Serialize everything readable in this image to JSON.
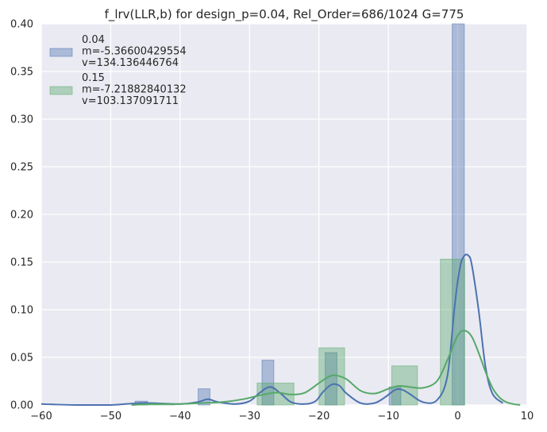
{
  "chart_data": {
    "type": "bar",
    "title": "f_lrv(LLR,b) for design_p=0.04, Rel_Order=686/1024 G=775",
    "xlabel": "",
    "ylabel": "",
    "xlim": [
      -60,
      10
    ],
    "ylim": [
      0,
      0.4
    ],
    "x_ticks": [
      -60,
      -50,
      -40,
      -30,
      -20,
      -10,
      0,
      10
    ],
    "x_tick_labels": [
      "−60",
      "−50",
      "−40",
      "−30",
      "−20",
      "−10",
      "0",
      "10"
    ],
    "y_ticks": [
      0,
      0.05,
      0.1,
      0.15,
      0.2,
      0.25,
      0.3,
      0.35,
      0.4
    ],
    "y_tick_labels": [
      "0.00",
      "0.05",
      "0.10",
      "0.15",
      "0.20",
      "0.25",
      "0.30",
      "0.35",
      "0.40"
    ],
    "grid": true,
    "legend_position": "top-left",
    "background": "#EAEAF2",
    "series": [
      {
        "name": "0.04",
        "legend_lines": [
          "0.04",
          " m=-5.36600429554",
          " v=134.136446764"
        ],
        "color": "#4C72B0",
        "histogram": [
          {
            "x0": -46.5,
            "x1": -44.7,
            "value": 0.004
          },
          {
            "x0": -37.4,
            "x1": -35.7,
            "value": 0.017
          },
          {
            "x0": -28.2,
            "x1": -26.5,
            "value": 0.047
          },
          {
            "x0": -19.1,
            "x1": -17.4,
            "value": 0.055
          },
          {
            "x0": -9.9,
            "x1": -8.2,
            "value": 0.019
          },
          {
            "x0": -0.8,
            "x1": 0.95,
            "value": 0.4
          }
        ],
        "kde_x": [
          -60,
          -55,
          -50,
          -46,
          -44,
          -40,
          -37.5,
          -36,
          -34.5,
          -32,
          -30,
          -28.5,
          -27,
          -25.5,
          -24,
          -22,
          -20.5,
          -19.5,
          -18.5,
          -17.8,
          -17,
          -16,
          -14,
          -12,
          -10.5,
          -9,
          -8,
          -7,
          -5,
          -3,
          -1.5,
          -0.5,
          0,
          0.5,
          1,
          1.5,
          2,
          3,
          4,
          5,
          6.5
        ],
        "kde_y": [
          0.001,
          0.0,
          0.0,
          0.002,
          0.002,
          0.001,
          0.003,
          0.006,
          0.003,
          0.001,
          0.004,
          0.013,
          0.019,
          0.012,
          0.003,
          0.001,
          0.004,
          0.013,
          0.02,
          0.022,
          0.02,
          0.012,
          0.002,
          0.002,
          0.008,
          0.016,
          0.016,
          0.012,
          0.003,
          0.005,
          0.03,
          0.1,
          0.13,
          0.15,
          0.157,
          0.157,
          0.148,
          0.1,
          0.04,
          0.012,
          0.002
        ]
      },
      {
        "name": "0.15",
        "legend_lines": [
          "0.15",
          " m=-7.21882840132",
          " v=103.137091711"
        ],
        "color": "#55A868",
        "histogram": [
          {
            "x0": -45.5,
            "x1": -40.8,
            "value": 0.001
          },
          {
            "x0": -28.9,
            "x1": -23.6,
            "value": 0.023
          },
          {
            "x0": -20.0,
            "x1": -16.3,
            "value": 0.06
          },
          {
            "x0": -9.5,
            "x1": -5.8,
            "value": 0.041
          },
          {
            "x0": -2.5,
            "x1": 1.0,
            "value": 0.153
          }
        ],
        "kde_x": [
          -47,
          -44,
          -40,
          -37,
          -34,
          -31,
          -28,
          -26,
          -24,
          -22,
          -20,
          -18.5,
          -17.5,
          -16,
          -14,
          -12,
          -10,
          -8.5,
          -7,
          -5,
          -3,
          -1.5,
          0,
          1,
          2,
          3,
          4,
          5,
          6,
          7,
          8,
          9
        ],
        "kde_y": [
          0.0,
          0.001,
          0.001,
          0.002,
          0.003,
          0.006,
          0.011,
          0.013,
          0.011,
          0.013,
          0.023,
          0.03,
          0.031,
          0.027,
          0.015,
          0.012,
          0.017,
          0.02,
          0.019,
          0.018,
          0.025,
          0.047,
          0.073,
          0.078,
          0.072,
          0.055,
          0.035,
          0.018,
          0.008,
          0.003,
          0.001,
          0.0
        ]
      }
    ]
  }
}
